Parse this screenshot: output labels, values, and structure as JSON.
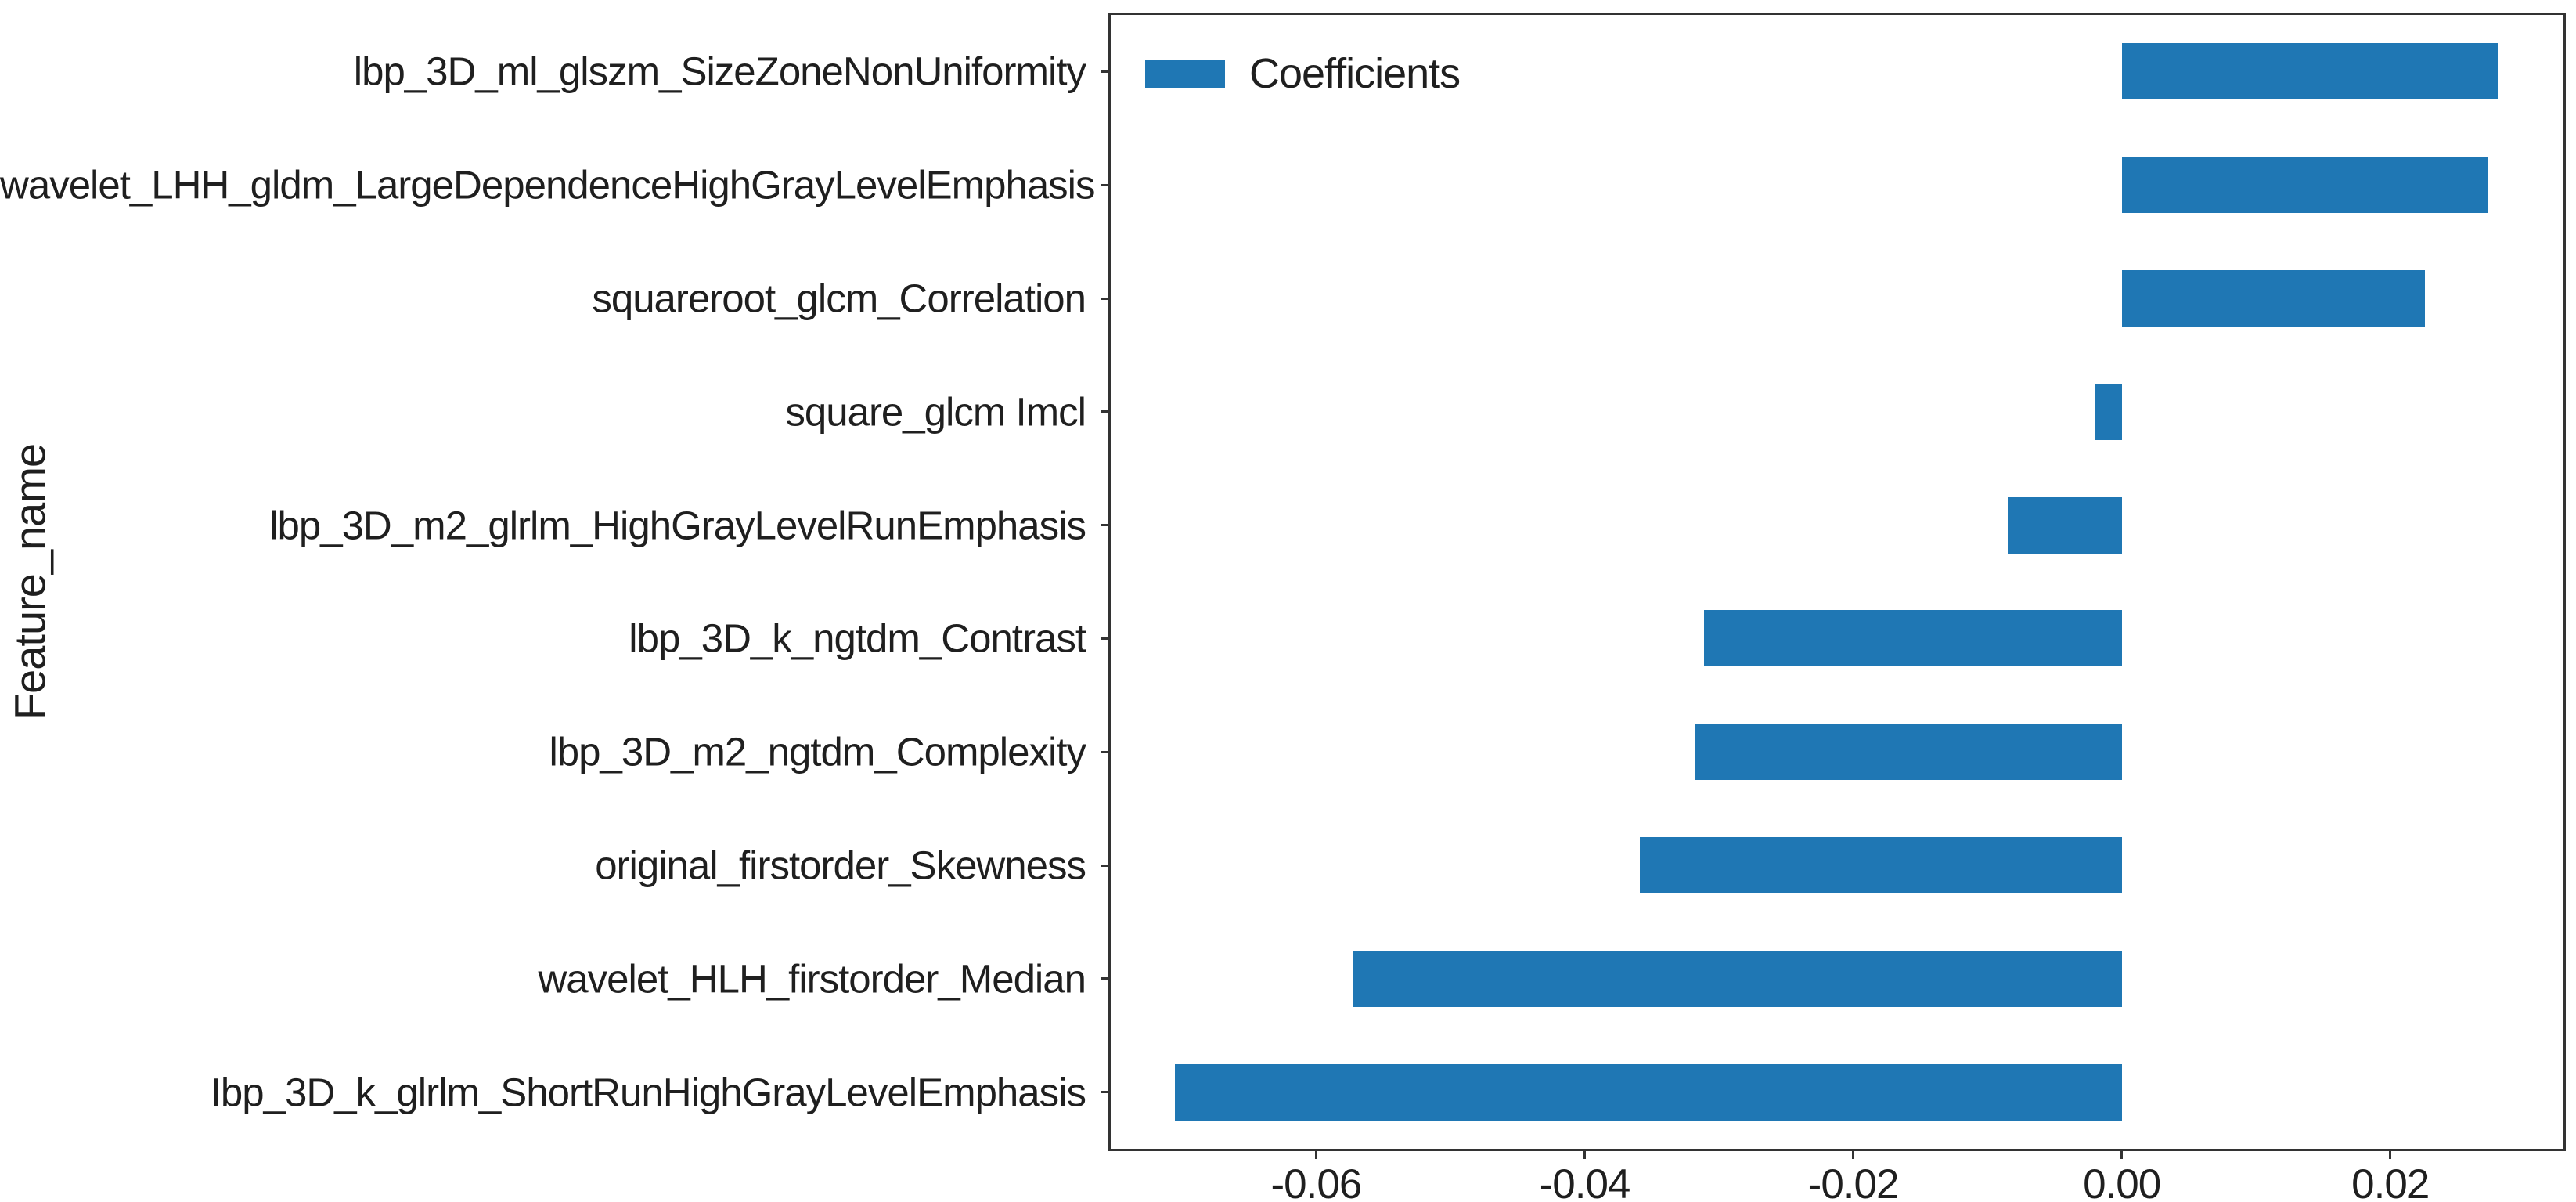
{
  "figure": {
    "background": "#ffffff",
    "axis_color": "#333333",
    "text_color": "#1f1f1f",
    "legend": {
      "label": "Coefficients",
      "swatch_color": "#1f77b4"
    }
  },
  "chart_data": {
    "type": "bar",
    "orientation": "horizontal",
    "title": "",
    "xlabel": "",
    "ylabel": "Feature_name",
    "grid": false,
    "legend_entries": [
      "Coefficients"
    ],
    "legend_position": "upper left",
    "bar_color": "#1f77b4",
    "categories": [
      "lbp_3D_ml_glszm_SizeZoneNonUniformity",
      "wavelet_LHH_gldm_LargeDependenceHighGrayLevelEmphasis",
      "squareroot_glcm_Correlation",
      "square_glcm Imcl",
      "lbp_3D_m2_glrlm_HighGrayLevelRunEmphasis",
      "lbp_3D_k_ngtdm_Contrast",
      "lbp_3D_m2_ngtdm_Complexity",
      "original_firstorder_Skewness",
      "wavelet_HLH_firstorder_Median",
      "Ibp_3D_k_glrlm_ShortRunHighGrayLevelEmphasis"
    ],
    "values": [
      0.028,
      0.0273,
      0.0226,
      -0.002,
      -0.0085,
      -0.0311,
      -0.0318,
      -0.0359,
      -0.0572,
      -0.0705
    ],
    "xlim": [
      -0.0753,
      0.0329
    ],
    "xticks": [
      -0.06,
      -0.04,
      -0.02,
      0.0,
      0.02
    ],
    "xtick_labels": [
      "-0.06",
      "-0.04",
      "-0.02",
      "0.00",
      "0.02"
    ]
  }
}
